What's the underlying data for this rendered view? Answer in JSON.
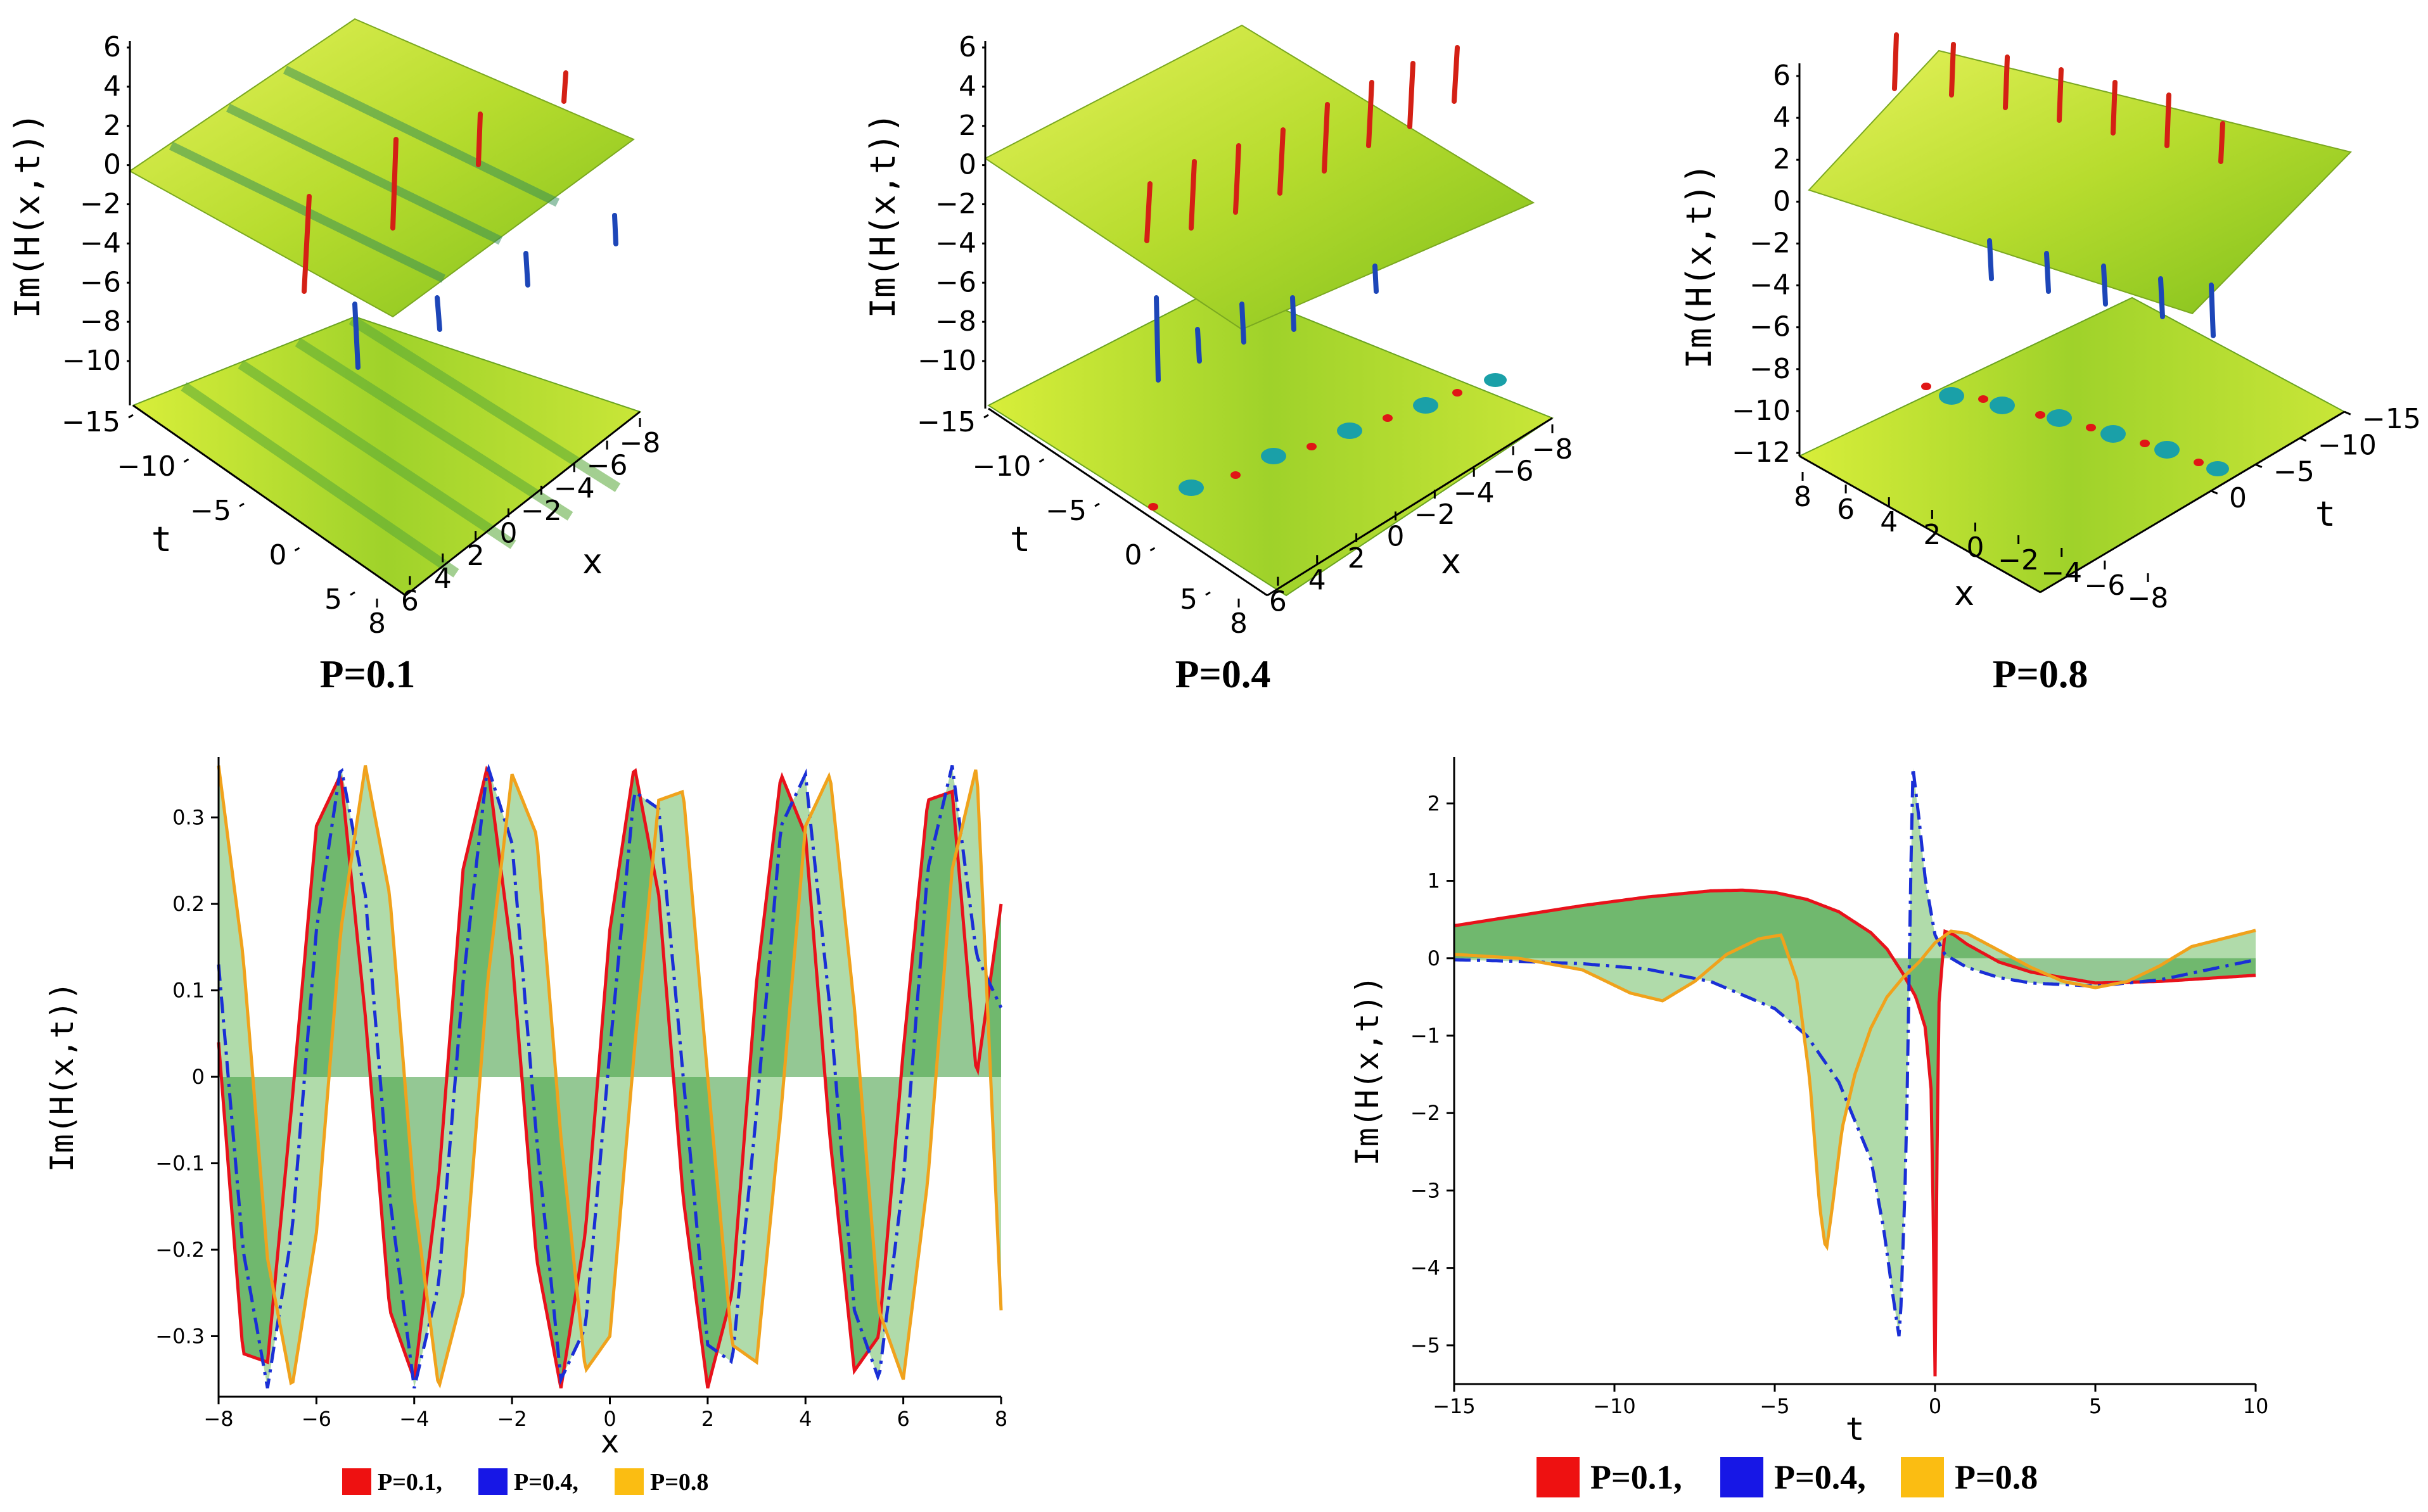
{
  "surfaces": [
    {
      "caption": "P=0.1",
      "zlabel": "Im(H(x,t))",
      "xlabel": "x",
      "tlabel": "t",
      "zticks": [
        "6",
        "4",
        "2",
        "0",
        "−2",
        "−4",
        "−6",
        "−8",
        "−10"
      ],
      "tticks": [
        "−15",
        "−10",
        "−5",
        "0",
        "5"
      ],
      "xticks": [
        "8",
        "6",
        "4",
        "2",
        "0",
        "−2",
        "−4",
        "−6",
        "−8"
      ]
    },
    {
      "caption": "P=0.4",
      "zlabel": "Im(H(x,t))",
      "xlabel": "x",
      "tlabel": "t",
      "zticks": [
        "6",
        "4",
        "2",
        "0",
        "−2",
        "−4",
        "−6",
        "−8",
        "−10"
      ],
      "tticks": [
        "−15",
        "−10",
        "−5",
        "0",
        "5"
      ],
      "xticks": [
        "8",
        "6",
        "4",
        "2",
        "0",
        "−2",
        "−4",
        "−6",
        "−8"
      ]
    },
    {
      "caption": "P=0.8",
      "zlabel": "Im(H(x,t))",
      "xlabel": "x",
      "tlabel": "t",
      "zticks": [
        "6",
        "4",
        "2",
        "0",
        "−2",
        "−4",
        "−6",
        "−8",
        "−10",
        "−12"
      ],
      "tticks": [
        "−15",
        "−10",
        "−5",
        "0"
      ],
      "xticks": [
        "8",
        "6",
        "4",
        "2",
        "0",
        "−2",
        "−4",
        "−6",
        "−8"
      ]
    }
  ],
  "chart_data": [
    {
      "type": "line",
      "xlabel": "x",
      "ylabel": "Im(H(x,t))",
      "xlim": [
        -8,
        8
      ],
      "ylim": [
        -0.37,
        0.37
      ],
      "xticks": [
        -8,
        -6,
        -4,
        -2,
        0,
        2,
        4,
        6,
        8
      ],
      "yticks": [
        -0.3,
        -0.2,
        -0.1,
        0,
        0.1,
        0.2,
        0.3
      ],
      "xtick_labels": [
        "−8",
        "−6",
        "−4",
        "−2",
        "0",
        "2",
        "4",
        "6",
        "8"
      ],
      "ytick_labels": [
        "−0.3",
        "−0.2",
        "−0.1",
        "0",
        "0.1",
        "0.2",
        "0.3"
      ],
      "series": [
        {
          "name": "P=0.1",
          "color": "#e8121b",
          "style": "solid",
          "x": [
            -8.0,
            -7.5,
            -7.0,
            -6.5,
            -6.0,
            -5.5,
            -5.0,
            -4.5,
            -4.0,
            -3.5,
            -3.0,
            -2.5,
            -2.0,
            -1.5,
            -1.0,
            -0.5,
            0.0,
            0.5,
            1.0,
            1.5,
            2.0,
            2.5,
            3.0,
            3.5,
            4.0,
            4.5,
            5.0,
            5.5,
            6.0,
            6.5,
            7.0,
            7.5,
            8.0
          ],
          "y": [
            0.04,
            -0.32,
            -0.33,
            -0.03,
            0.29,
            0.35,
            0.07,
            -0.27,
            -0.35,
            -0.12,
            0.24,
            0.36,
            0.14,
            -0.21,
            -0.36,
            -0.18,
            0.17,
            0.36,
            0.21,
            -0.14,
            -0.36,
            -0.25,
            0.11,
            0.35,
            0.28,
            -0.07,
            -0.34,
            -0.3,
            0.03,
            0.32,
            0.33,
            0.0,
            0.2
          ]
        },
        {
          "name": "P=0.4",
          "color": "#1a2fd6",
          "style": "dashdot",
          "x": [
            -8.0,
            -7.5,
            -7.0,
            -6.5,
            -6.0,
            -5.5,
            -5.0,
            -4.5,
            -4.0,
            -3.5,
            -3.0,
            -2.5,
            -2.0,
            -1.5,
            -1.0,
            -0.5,
            0.0,
            0.5,
            1.0,
            1.5,
            2.0,
            2.5,
            3.0,
            3.5,
            4.0,
            4.5,
            5.0,
            5.5,
            6.0,
            6.5,
            7.0,
            7.5,
            8.0
          ],
          "y": [
            0.13,
            -0.2,
            -0.36,
            -0.18,
            0.17,
            0.36,
            0.21,
            -0.14,
            -0.36,
            -0.24,
            0.11,
            0.36,
            0.27,
            -0.07,
            -0.35,
            -0.29,
            0.03,
            0.33,
            0.31,
            0.0,
            -0.31,
            -0.33,
            -0.04,
            0.29,
            0.35,
            0.08,
            -0.27,
            -0.35,
            -0.12,
            0.24,
            0.36,
            0.14,
            0.08
          ]
        },
        {
          "name": "P=0.8",
          "color": "#f0a21c",
          "style": "solid",
          "x": [
            -8.0,
            -7.5,
            -7.0,
            -6.5,
            -6.0,
            -5.5,
            -5.0,
            -4.5,
            -4.0,
            -3.5,
            -3.0,
            -2.5,
            -2.0,
            -1.5,
            -1.0,
            -0.5,
            0.0,
            0.5,
            1.0,
            1.5,
            2.0,
            2.5,
            3.0,
            3.5,
            4.0,
            4.5,
            5.0,
            5.5,
            6.0,
            6.5,
            7.0,
            7.5,
            8.0
          ],
          "y": [
            0.36,
            0.14,
            -0.21,
            -0.36,
            -0.18,
            0.17,
            0.36,
            0.21,
            -0.14,
            -0.36,
            -0.25,
            0.11,
            0.35,
            0.28,
            -0.07,
            -0.34,
            -0.3,
            0.03,
            0.32,
            0.33,
            0.0,
            -0.31,
            -0.33,
            -0.04,
            0.29,
            0.35,
            0.08,
            -0.27,
            -0.35,
            -0.12,
            0.24,
            0.36,
            -0.27
          ]
        }
      ],
      "legend": "bottom"
    },
    {
      "type": "line",
      "xlabel": "t",
      "ylabel": "Im(H(x,t))",
      "xlim": [
        -15,
        10
      ],
      "ylim": [
        -5.5,
        2.6
      ],
      "xticks": [
        -15,
        -10,
        -5,
        0,
        5,
        10
      ],
      "yticks": [
        -5,
        -4,
        -3,
        -2,
        -1,
        0,
        1,
        2
      ],
      "xtick_labels": [
        "−15",
        "−10",
        "−5",
        "0",
        "5",
        "10"
      ],
      "ytick_labels": [
        "−5",
        "−4",
        "−3",
        "−2",
        "−1",
        "0",
        "1",
        "2"
      ],
      "series": [
        {
          "name": "P=0.1",
          "color": "#e8121b",
          "style": "solid",
          "x": [
            -15,
            -13,
            -11,
            -9,
            -7,
            -6,
            -5,
            -4,
            -3,
            -2,
            -1.5,
            -1,
            -0.6,
            -0.3,
            -0.1,
            0,
            0.1,
            0.3,
            0.6,
            1,
            2,
            3,
            5,
            7,
            10
          ],
          "y": [
            0.42,
            0.55,
            0.68,
            0.79,
            0.87,
            0.88,
            0.85,
            0.76,
            0.6,
            0.33,
            0.12,
            -0.2,
            -0.5,
            -0.9,
            -1.8,
            -5.4,
            -0.7,
            0.35,
            0.3,
            0.18,
            -0.05,
            -0.18,
            -0.32,
            -0.3,
            -0.22
          ]
        },
        {
          "name": "P=0.4",
          "color": "#1a2fd6",
          "style": "dashdot",
          "x": [
            -15,
            -13,
            -11,
            -9,
            -7,
            -5,
            -4,
            -3,
            -2,
            -1.6,
            -1.3,
            -1.1,
            -0.9,
            -0.7,
            -0.5,
            -0.3,
            0,
            0.3,
            1,
            2,
            3,
            5,
            7,
            10
          ],
          "y": [
            -0.02,
            -0.04,
            -0.07,
            -0.14,
            -0.3,
            -0.65,
            -1.0,
            -1.6,
            -2.6,
            -3.5,
            -4.4,
            -4.95,
            -2.5,
            2.5,
            1.8,
            1.0,
            0.3,
            0.05,
            -0.12,
            -0.25,
            -0.32,
            -0.36,
            -0.28,
            -0.02
          ]
        },
        {
          "name": "P=0.8",
          "color": "#f0a21c",
          "style": "solid",
          "x": [
            -15,
            -13,
            -11,
            -9.5,
            -8.5,
            -7.5,
            -6.5,
            -5.5,
            -4.8,
            -4.3,
            -3.9,
            -3.6,
            -3.4,
            -3.2,
            -2.9,
            -2.5,
            -2,
            -1.5,
            -1,
            -0.5,
            0,
            0.5,
            1,
            2,
            3,
            4,
            5,
            6,
            7,
            8,
            10
          ],
          "y": [
            0.05,
            0.0,
            -0.15,
            -0.45,
            -0.55,
            -0.3,
            0.05,
            0.25,
            0.3,
            -0.3,
            -1.6,
            -3.2,
            -3.8,
            -3.2,
            -2.2,
            -1.5,
            -0.9,
            -0.5,
            -0.25,
            -0.05,
            0.2,
            0.35,
            0.32,
            0.1,
            -0.12,
            -0.3,
            -0.38,
            -0.3,
            -0.1,
            0.15,
            0.36
          ]
        }
      ],
      "legend": "bottom"
    }
  ],
  "legend": [
    {
      "label": "P=0.1,",
      "color": "#ee1111"
    },
    {
      "label": "P=0.4,",
      "color": "#1717e6"
    },
    {
      "label": "P=0.8",
      "color": "#fbbd12"
    }
  ]
}
